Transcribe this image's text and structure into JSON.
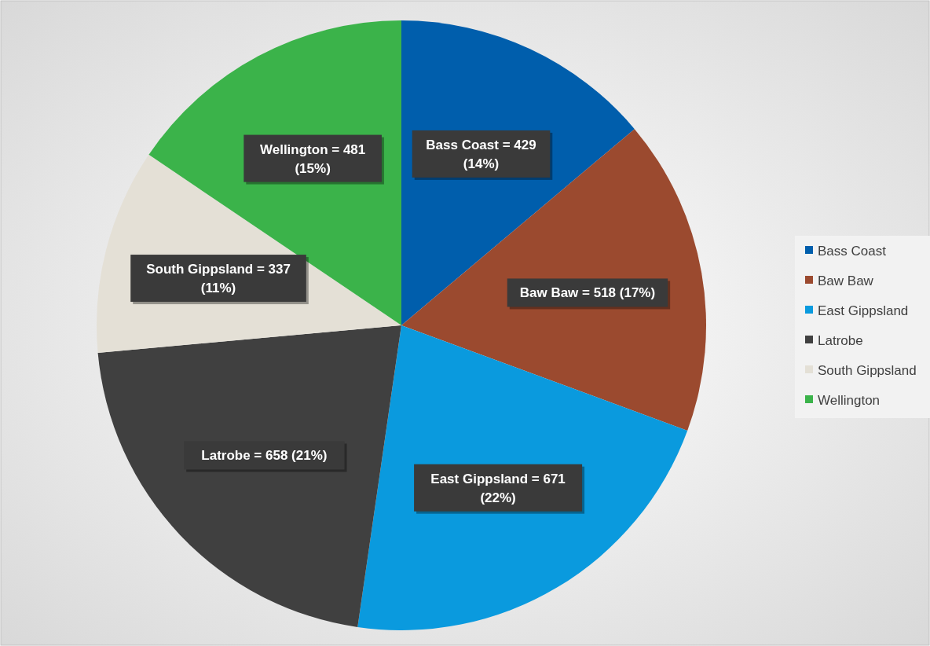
{
  "chart_data": {
    "type": "pie",
    "categories": [
      "Bass Coast",
      "Baw Baw",
      "East Gippsland",
      "Latrobe",
      "South Gippsland",
      "Wellington"
    ],
    "values": [
      429,
      518,
      671,
      658,
      337,
      481
    ],
    "colors": [
      "#005eac",
      "#9b4a2f",
      "#0a9ade",
      "#404040",
      "#e4e0d6",
      "#3bb34a"
    ],
    "value_labels": [
      "Bass Coast = 429 (14%)",
      "Baw Baw = 518 (17%)",
      "East Gippsland = 671 (22%)",
      "Latrobe = 658 (21%)",
      "South Gippsland = 337 (11%)",
      "Wellington = 481 (15%)"
    ],
    "legend": "right"
  }
}
